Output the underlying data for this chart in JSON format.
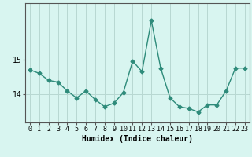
{
  "x": [
    0,
    1,
    2,
    3,
    4,
    5,
    6,
    7,
    8,
    9,
    10,
    11,
    12,
    13,
    14,
    15,
    16,
    17,
    18,
    19,
    20,
    21,
    22,
    23
  ],
  "y": [
    14.7,
    14.6,
    14.4,
    14.35,
    14.1,
    13.9,
    14.1,
    13.85,
    13.65,
    13.75,
    14.05,
    14.95,
    14.65,
    16.1,
    14.75,
    13.9,
    13.65,
    13.6,
    13.5,
    13.7,
    13.7,
    14.1,
    14.75,
    14.75
  ],
  "line_color": "#2e8b7a",
  "marker": "D",
  "markersize": 2.5,
  "linewidth": 1.0,
  "bg_color": "#d8f5f0",
  "grid_color": "#b8d8d2",
  "xlabel": "Humidex (Indice chaleur)",
  "ytick_labels": [
    "14",
    "15"
  ],
  "ytick_values": [
    14,
    15
  ],
  "ylim": [
    13.2,
    16.6
  ],
  "xlim": [
    -0.5,
    23.5
  ],
  "xlabel_fontsize": 7,
  "tick_fontsize": 6,
  "spine_color": "#555555"
}
